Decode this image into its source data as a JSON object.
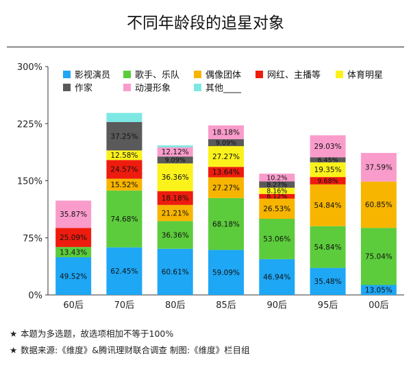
{
  "chart_data": {
    "type": "bar",
    "stacked": true,
    "title": "不同年龄段的追星对象",
    "xlabel": "",
    "ylabel": "",
    "ylim": [
      0,
      300
    ],
    "yticks": [
      "0%",
      "75%",
      "150%",
      "225%",
      "300%"
    ],
    "grid": false,
    "legend_position": "top",
    "categories": [
      "60后",
      "70后",
      "80后",
      "85后",
      "90后",
      "95后",
      "00后"
    ],
    "series": [
      {
        "name": "影视演员",
        "color": "#1ea7f5",
        "values": [
          49.52,
          62.45,
          60.61,
          59.09,
          46.94,
          35.48,
          13.05
        ],
        "labels": [
          "49.52%",
          "62.45%",
          "60.61%",
          "59.09%",
          "46.94%",
          "35.48%",
          "13.05%"
        ]
      },
      {
        "name": "歌手、乐队",
        "color": "#5ccc3c",
        "values": [
          13.43,
          74.68,
          36.36,
          68.18,
          53.06,
          54.84,
          75.04
        ],
        "labels": [
          "13.43%",
          "74.68%",
          "36.36%",
          "68.18%",
          "53.06%",
          "54.84%",
          "75.04%"
        ]
      },
      {
        "name": "偶像团体",
        "color": "#f7b500",
        "values": [
          0,
          15.52,
          21.21,
          27.27,
          26.53,
          54.84,
          60.85
        ],
        "labels": [
          "",
          "15.52%",
          "21.21%",
          "27.27%",
          "26.53%",
          "54.84%",
          "60.85%"
        ]
      },
      {
        "name": "网红、主播等",
        "color": "#ee1c0e",
        "values": [
          25.09,
          24.57,
          18.18,
          13.64,
          6.12,
          9.68,
          0
        ],
        "labels": [
          "25.09%",
          "24.57%",
          "18.18%",
          "13.64%",
          "6.12%",
          "9.68%",
          ""
        ]
      },
      {
        "name": "体育明星",
        "color": "#fbf21c",
        "values": [
          0,
          12.58,
          36.36,
          27.27,
          8.16,
          19.35,
          0
        ],
        "labels": [
          "",
          "12.58%",
          "36.36%",
          "27.27%",
          "8.16%",
          "19.35%",
          ""
        ]
      },
      {
        "name": "作家",
        "color": "#5a5a5a",
        "values": [
          0,
          37.25,
          9.09,
          9.09,
          8.27,
          6.45,
          0
        ],
        "labels": [
          "",
          "37.25%",
          "9.09%",
          "9.09%",
          "8.27%",
          "6.45%",
          ""
        ]
      },
      {
        "name": "动漫形象",
        "color": "#f99ccb",
        "values": [
          35.87,
          0,
          12.12,
          18.18,
          10.2,
          29.03,
          37.59
        ],
        "labels": [
          "35.87%",
          "",
          "12.12%",
          "18.18%",
          "10.2%",
          "29.03%",
          "37.59%"
        ]
      },
      {
        "name": "其他____",
        "color": "#7de8e3",
        "values": [
          0,
          12,
          2.5,
          0,
          0,
          0,
          0
        ],
        "labels": [
          "",
          "",
          "",
          "",
          "",
          "",
          ""
        ]
      }
    ]
  },
  "notes": [
    {
      "star": "★",
      "text": "本题为多选题，故选项相加不等于100%"
    },
    {
      "star": "★",
      "text": "数据来源:《维度》&腾讯理财联合调查    制图:《维度》栏目组"
    }
  ]
}
